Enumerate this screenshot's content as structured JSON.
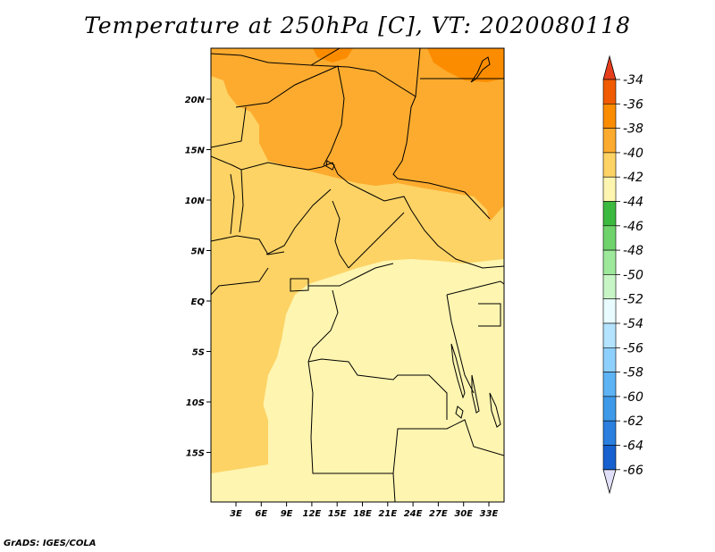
{
  "title": "Temperature at 250hPa [C], VT: 2020080118",
  "footer": "GrADS: IGES/COLA",
  "x_ticks": [
    "3E",
    "6E",
    "9E",
    "12E",
    "15E",
    "18E",
    "21E",
    "24E",
    "27E",
    "30E",
    "33E"
  ],
  "y_ticks": [
    "20N",
    "15N",
    "10N",
    "5N",
    "EQ",
    "5S",
    "10S",
    "15S"
  ],
  "colorbar": {
    "labels": [
      "-34",
      "-36",
      "-38",
      "-40",
      "-42",
      "-44",
      "-46",
      "-48",
      "-50",
      "-52",
      "-54",
      "-56",
      "-58",
      "-60",
      "-62",
      "-64",
      "-66"
    ],
    "colors": [
      "#f05a00",
      "#fb8c00",
      "#fdab2e",
      "#fdd365",
      "#fef5b0",
      "#3cb93f",
      "#6fd36b",
      "#9de89a",
      "#c8f5c5",
      "#e8fbff",
      "#b4e3ff",
      "#8ed0fd",
      "#5db3f4",
      "#3e9ae8",
      "#2a7fdf",
      "#1660cf",
      "#0c2a86"
    ],
    "top_arrow_color": "#e63e1d",
    "bottom_arrow_color": "#e0e0f8"
  }
}
